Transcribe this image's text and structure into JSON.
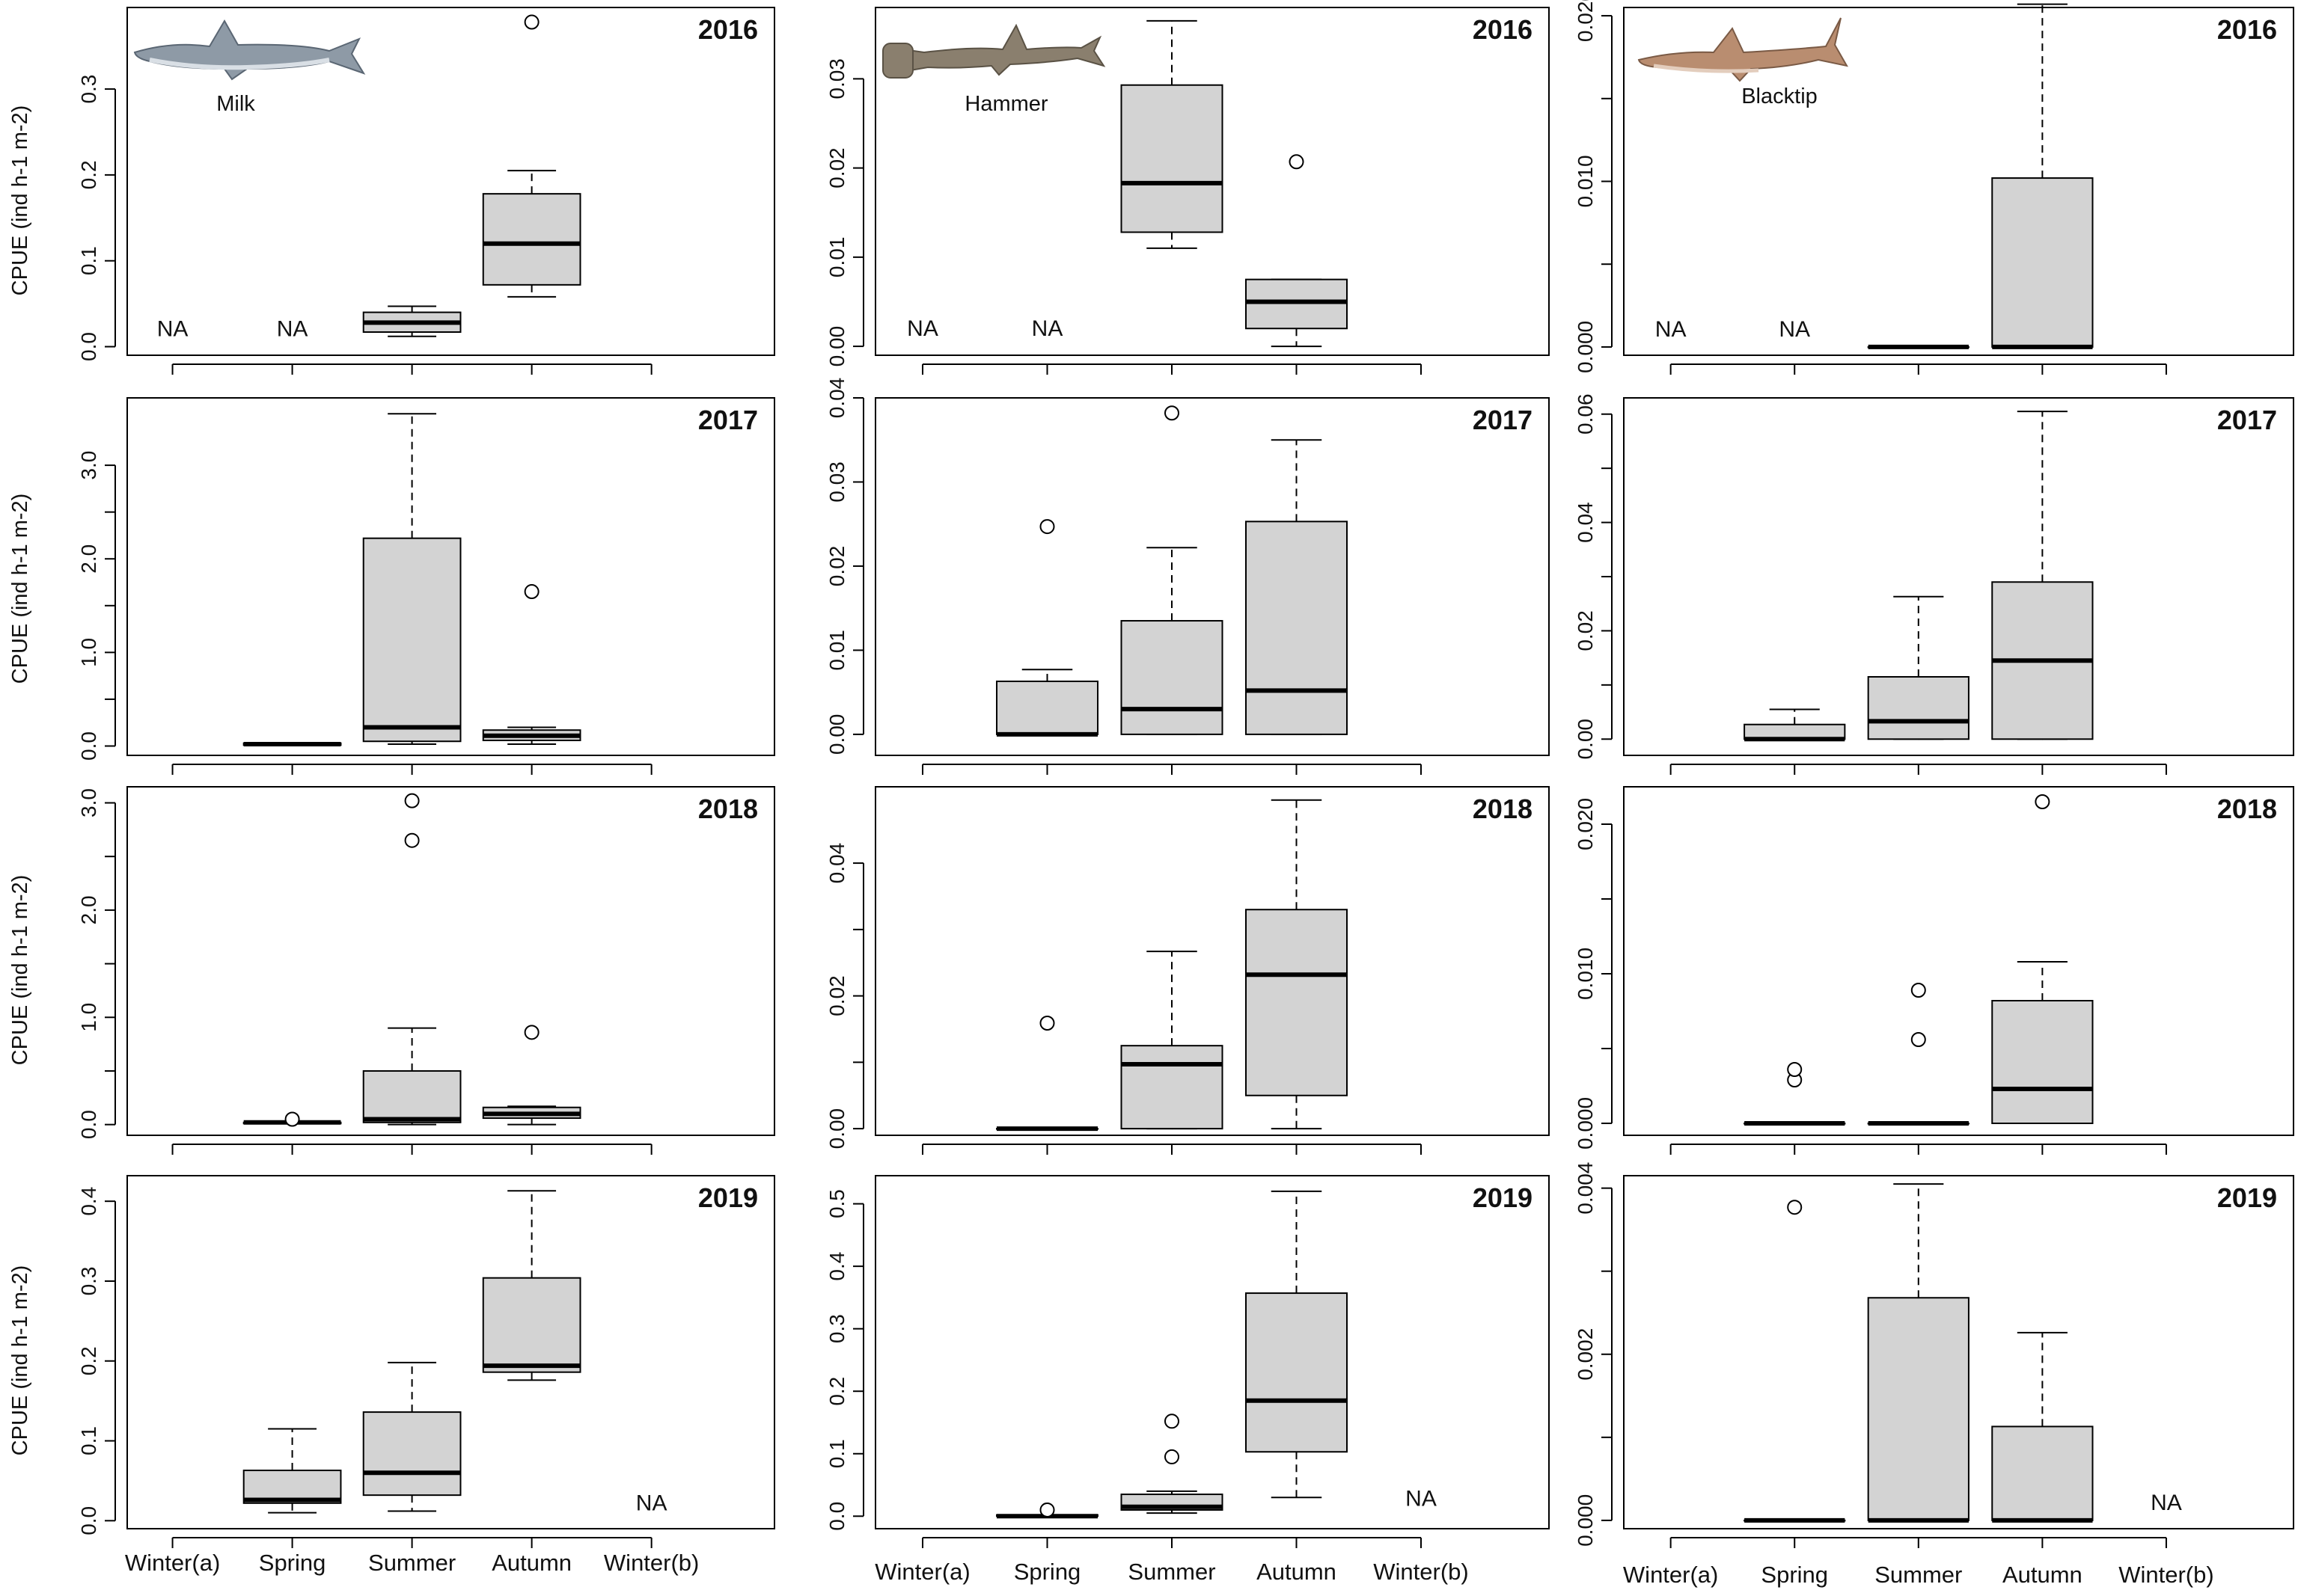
{
  "figure": {
    "ylabel": "CPUE (ind h-1 m-2)",
    "na_label": "NA",
    "categories": [
      "Winter(a)",
      "Spring",
      "Summer",
      "Autumn",
      "Winter(b)"
    ],
    "colors": {
      "box_fill": "#d3d3d3",
      "stroke": "#000000",
      "background": "#ffffff"
    }
  },
  "species": [
    {
      "name": "Milk",
      "icon": "milk-shark-icon"
    },
    {
      "name": "Hammer",
      "icon": "hammerhead-shark-icon"
    },
    {
      "name": "Blacktip",
      "icon": "blacktip-shark-icon"
    }
  ],
  "chart_data": [
    {
      "type": "box",
      "species": "Milk",
      "year": "2016",
      "ylim": [
        -0.01,
        0.395
      ],
      "yticks": [
        0.0,
        0.1,
        0.2,
        0.3
      ],
      "ytick_labels": [
        "0.0",
        "0.1",
        "0.2",
        "0.3"
      ],
      "boxes": [
        {
          "category": "Winter(a)",
          "na": true
        },
        {
          "category": "Spring",
          "na": true
        },
        {
          "category": "Summer",
          "lw": 0.012,
          "q1": 0.017,
          "med": 0.028,
          "q3": 0.04,
          "uw": 0.047,
          "out": []
        },
        {
          "category": "Autumn",
          "lw": 0.058,
          "q1": 0.072,
          "med": 0.12,
          "q3": 0.178,
          "uw": 0.205,
          "out": [
            0.378
          ]
        },
        {
          "category": "Winter(b)",
          "na": false
        }
      ]
    },
    {
      "type": "box",
      "species": "Hammer",
      "year": "2016",
      "ylim": [
        -0.001,
        0.038
      ],
      "yticks": [
        0.0,
        0.01,
        0.02,
        0.03
      ],
      "ytick_labels": [
        "0.00",
        "0.01",
        "0.02",
        "0.03"
      ],
      "boxes": [
        {
          "category": "Winter(a)",
          "na": true
        },
        {
          "category": "Spring",
          "na": true
        },
        {
          "category": "Summer",
          "lw": 0.011,
          "q1": 0.0128,
          "med": 0.0183,
          "q3": 0.0293,
          "uw": 0.0365,
          "out": []
        },
        {
          "category": "Autumn",
          "lw": 0.0,
          "q1": 0.002,
          "med": 0.005,
          "q3": 0.0075,
          "uw": 0.0075,
          "out": [
            0.0207
          ]
        },
        {
          "category": "Winter(b)",
          "na": false
        }
      ]
    },
    {
      "type": "box",
      "species": "Blacktip",
      "year": "2016",
      "ylim": [
        -0.0005,
        0.0205
      ],
      "yticks": [
        0.0,
        0.005,
        0.01,
        0.015,
        0.02
      ],
      "ytick_labels": [
        "0.000",
        "",
        "0.010",
        "",
        "0.020"
      ],
      "boxes": [
        {
          "category": "Winter(a)",
          "na": true
        },
        {
          "category": "Spring",
          "na": true
        },
        {
          "category": "Summer",
          "lw": 0.0,
          "q1": 0.0,
          "med": 0.0,
          "q3": 0.0,
          "uw": 0.0,
          "out": []
        },
        {
          "category": "Autumn",
          "lw": 0.0,
          "q1": 0.0,
          "med": 0.0,
          "q3": 0.0102,
          "uw": 0.0207,
          "out": []
        },
        {
          "category": "Winter(b)",
          "na": false
        }
      ]
    },
    {
      "type": "box",
      "species": "Milk",
      "year": "2017",
      "ylim": [
        -0.1,
        3.72
      ],
      "yticks": [
        0.0,
        1.0,
        2.0,
        3.0
      ],
      "ytick_labels": [
        "0.0",
        "1.0",
        "2.0",
        "3.0"
      ],
      "minor_ticks": [
        0.5,
        1.5,
        2.5
      ],
      "boxes": [
        {
          "category": "Winter(a)",
          "na": false
        },
        {
          "category": "Spring",
          "lw": 0.01,
          "q1": 0.01,
          "med": 0.02,
          "q3": 0.03,
          "uw": 0.03,
          "out": []
        },
        {
          "category": "Summer",
          "lw": 0.02,
          "q1": 0.05,
          "med": 0.2,
          "q3": 2.22,
          "uw": 3.55,
          "out": []
        },
        {
          "category": "Autumn",
          "lw": 0.02,
          "q1": 0.06,
          "med": 0.11,
          "q3": 0.17,
          "uw": 0.2,
          "out": [
            1.65
          ]
        },
        {
          "category": "Winter(b)",
          "na": false
        }
      ]
    },
    {
      "type": "box",
      "species": "Hammer",
      "year": "2017",
      "ylim": [
        -0.0025,
        0.04
      ],
      "yticks": [
        0.0,
        0.01,
        0.02,
        0.03,
        0.04
      ],
      "ytick_labels": [
        "0.00",
        "0.01",
        "0.02",
        "0.03",
        "0.04"
      ],
      "boxes": [
        {
          "category": "Winter(a)",
          "na": false
        },
        {
          "category": "Spring",
          "lw": 0.0,
          "q1": 0.0,
          "med": 0.0,
          "q3": 0.0063,
          "uw": 0.0077,
          "out": [
            0.0247
          ]
        },
        {
          "category": "Summer",
          "lw": 0.0,
          "q1": 0.0,
          "med": 0.003,
          "q3": 0.0135,
          "uw": 0.0222,
          "out": [
            0.0382
          ]
        },
        {
          "category": "Autumn",
          "lw": 0.0,
          "q1": 0.0,
          "med": 0.0052,
          "q3": 0.0253,
          "uw": 0.035,
          "out": []
        },
        {
          "category": "Winter(b)",
          "na": false
        }
      ]
    },
    {
      "type": "box",
      "species": "Blacktip",
      "year": "2017",
      "ylim": [
        -0.003,
        0.063
      ],
      "yticks": [
        0.0,
        0.01,
        0.02,
        0.03,
        0.04,
        0.05,
        0.06
      ],
      "ytick_labels": [
        "0.00",
        "",
        "0.02",
        "",
        "0.04",
        "",
        "0.06"
      ],
      "boxes": [
        {
          "category": "Winter(a)",
          "na": false
        },
        {
          "category": "Spring",
          "lw": 0.0,
          "q1": 0.0,
          "med": 0.0,
          "q3": 0.0027,
          "uw": 0.0055,
          "out": []
        },
        {
          "category": "Summer",
          "lw": 0.0,
          "q1": 0.0,
          "med": 0.0033,
          "q3": 0.0115,
          "uw": 0.0263,
          "out": []
        },
        {
          "category": "Autumn",
          "lw": 0.0,
          "q1": 0.0,
          "med": 0.0145,
          "q3": 0.029,
          "uw": 0.0605,
          "out": []
        },
        {
          "category": "Winter(b)",
          "na": false
        }
      ]
    },
    {
      "type": "box",
      "species": "Milk",
      "year": "2018",
      "ylim": [
        -0.1,
        3.15
      ],
      "yticks": [
        0.0,
        1.0,
        2.0,
        3.0
      ],
      "ytick_labels": [
        "0.0",
        "1.0",
        "2.0",
        "3.0"
      ],
      "minor_ticks": [
        0.5,
        1.5,
        2.5
      ],
      "boxes": [
        {
          "category": "Winter(a)",
          "na": false
        },
        {
          "category": "Spring",
          "lw": 0.01,
          "q1": 0.01,
          "med": 0.02,
          "q3": 0.02,
          "uw": 0.02,
          "out": [
            0.05
          ]
        },
        {
          "category": "Summer",
          "lw": 0.0,
          "q1": 0.02,
          "med": 0.05,
          "q3": 0.5,
          "uw": 0.9,
          "out": [
            2.65,
            3.02
          ]
        },
        {
          "category": "Autumn",
          "lw": 0.0,
          "q1": 0.06,
          "med": 0.1,
          "q3": 0.16,
          "uw": 0.17,
          "out": [
            0.86
          ]
        },
        {
          "category": "Winter(b)",
          "na": false
        }
      ]
    },
    {
      "type": "box",
      "species": "Hammer",
      "year": "2018",
      "ylim": [
        -0.001,
        0.0515
      ],
      "yticks": [
        0.0,
        0.01,
        0.02,
        0.03,
        0.04
      ],
      "ytick_labels": [
        "0.00",
        "",
        "0.02",
        "",
        "0.04"
      ],
      "boxes": [
        {
          "category": "Winter(a)",
          "na": false
        },
        {
          "category": "Spring",
          "lw": 0.0,
          "q1": 0.0,
          "med": 0.0,
          "q3": 0.0,
          "uw": 0.0,
          "out": [
            0.0159
          ]
        },
        {
          "category": "Summer",
          "lw": 0.0,
          "q1": 0.0,
          "med": 0.0097,
          "q3": 0.0125,
          "uw": 0.0267,
          "out": []
        },
        {
          "category": "Autumn",
          "lw": 0.0,
          "q1": 0.005,
          "med": 0.0232,
          "q3": 0.033,
          "uw": 0.0495,
          "out": []
        },
        {
          "category": "Winter(b)",
          "na": false
        }
      ]
    },
    {
      "type": "box",
      "species": "Blacktip",
      "year": "2018",
      "ylim": [
        -0.0008,
        0.0225
      ],
      "yticks": [
        0.0,
        0.005,
        0.01,
        0.015,
        0.02
      ],
      "ytick_labels": [
        "0.000",
        "",
        "0.010",
        "",
        "0.020"
      ],
      "boxes": [
        {
          "category": "Winter(a)",
          "na": false
        },
        {
          "category": "Spring",
          "lw": 0.0,
          "q1": 0.0,
          "med": 0.0,
          "q3": 0.0,
          "uw": 0.0,
          "out": [
            0.0029,
            0.0036
          ]
        },
        {
          "category": "Summer",
          "lw": 0.0,
          "q1": 0.0,
          "med": 0.0,
          "q3": 0.0,
          "uw": 0.0,
          "out": [
            0.0056,
            0.0089
          ]
        },
        {
          "category": "Autumn",
          "lw": 0.0,
          "q1": 0.0,
          "med": 0.0023,
          "q3": 0.0082,
          "uw": 0.0108,
          "out": [
            0.0215
          ]
        },
        {
          "category": "Winter(b)",
          "na": false
        }
      ]
    },
    {
      "type": "box",
      "species": "Milk",
      "year": "2019",
      "ylim": [
        -0.01,
        0.432
      ],
      "yticks": [
        0.0,
        0.1,
        0.2,
        0.3,
        0.4
      ],
      "ytick_labels": [
        "0.0",
        "0.1",
        "0.2",
        "0.3",
        "0.4"
      ],
      "boxes": [
        {
          "category": "Winter(a)",
          "na": false
        },
        {
          "category": "Spring",
          "lw": 0.01,
          "q1": 0.022,
          "med": 0.026,
          "q3": 0.063,
          "uw": 0.115,
          "out": []
        },
        {
          "category": "Summer",
          "lw": 0.012,
          "q1": 0.032,
          "med": 0.06,
          "q3": 0.136,
          "uw": 0.198,
          "out": []
        },
        {
          "category": "Autumn",
          "lw": 0.176,
          "q1": 0.186,
          "med": 0.194,
          "q3": 0.304,
          "uw": 0.413,
          "out": []
        },
        {
          "category": "Winter(b)",
          "na": true
        }
      ]
    },
    {
      "type": "box",
      "species": "Hammer",
      "year": "2019",
      "ylim": [
        -0.02,
        0.545
      ],
      "yticks": [
        0.0,
        0.1,
        0.2,
        0.3,
        0.4,
        0.5
      ],
      "ytick_labels": [
        "0.0",
        "0.1",
        "0.2",
        "0.3",
        "0.4",
        "0.5"
      ],
      "boxes": [
        {
          "category": "Winter(a)",
          "na": false
        },
        {
          "category": "Spring",
          "lw": 0.0,
          "q1": 0.0,
          "med": 0.0,
          "q3": 0.002,
          "uw": 0.002,
          "out": [
            0.01
          ]
        },
        {
          "category": "Summer",
          "lw": 0.005,
          "q1": 0.01,
          "med": 0.015,
          "q3": 0.035,
          "uw": 0.04,
          "out": [
            0.095,
            0.152
          ]
        },
        {
          "category": "Autumn",
          "lw": 0.03,
          "q1": 0.103,
          "med": 0.185,
          "q3": 0.357,
          "uw": 0.52,
          "out": []
        },
        {
          "category": "Winter(b)",
          "na": true
        }
      ]
    },
    {
      "type": "box",
      "species": "Blacktip",
      "year": "2019",
      "ylim": [
        -0.0001,
        0.00415
      ],
      "yticks": [
        0.0,
        0.001,
        0.002,
        0.003,
        0.004
      ],
      "ytick_labels": [
        "0.000",
        "",
        "0.002",
        "",
        "0.004"
      ],
      "boxes": [
        {
          "category": "Winter(a)",
          "na": false
        },
        {
          "category": "Spring",
          "lw": 0.0,
          "q1": 0.0,
          "med": 0.0,
          "q3": 0.0,
          "uw": 0.0,
          "out": [
            0.00377
          ]
        },
        {
          "category": "Summer",
          "lw": 0.0,
          "q1": 0.0,
          "med": 0.0,
          "q3": 0.00268,
          "uw": 0.00405,
          "out": []
        },
        {
          "category": "Autumn",
          "lw": 0.0,
          "q1": 0.0,
          "med": 0.0,
          "q3": 0.00113,
          "uw": 0.00226,
          "out": []
        },
        {
          "category": "Winter(b)",
          "na": true
        }
      ]
    }
  ]
}
